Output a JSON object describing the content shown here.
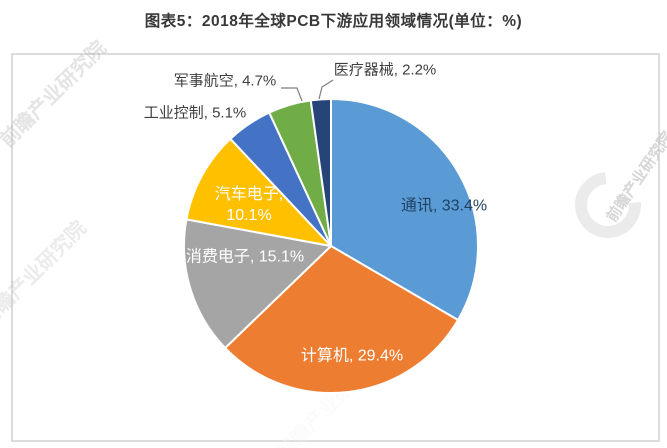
{
  "page": {
    "title": "图表5：2018年全球PCB下游应用领域情况(单位：%)"
  },
  "watermark": {
    "text": "前瞻产业研究院"
  },
  "chart_data": {
    "type": "pie",
    "title": "图表5：2018年全球PCB下游应用领域情况(单位：%)",
    "unit": "%",
    "direction": "clockwise",
    "start_angle_deg": 0,
    "legend": "none",
    "label_format": "{label}, {value}%",
    "series": [
      {
        "label": "通讯",
        "value": 33.4,
        "color": "#5B9BD5"
      },
      {
        "label": "计算机",
        "value": 29.4,
        "color": "#ED7D31"
      },
      {
        "label": "消费电子",
        "value": 15.1,
        "color": "#A5A5A5"
      },
      {
        "label": "汽车电子",
        "value": 10.1,
        "color": "#FFC000"
      },
      {
        "label": "工业控制",
        "value": 5.1,
        "color": "#4472C4"
      },
      {
        "label": "军事航空",
        "value": 4.7,
        "color": "#70AD47"
      },
      {
        "label": "医疗器械",
        "value": 2.2,
        "color": "#264478"
      }
    ],
    "label_colors": {
      "inside_dark": "#1F4264",
      "inside_light": "#FFFFFF",
      "outside": "#3F3F3F"
    }
  }
}
